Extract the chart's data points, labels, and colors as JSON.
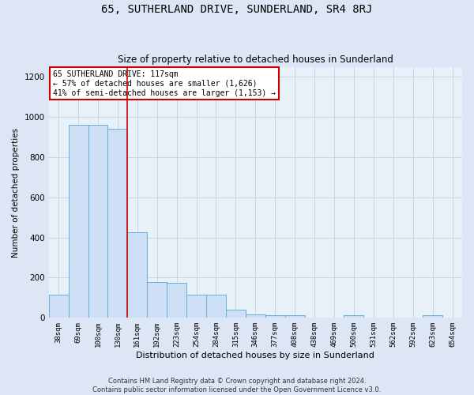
{
  "title": "65, SUTHERLAND DRIVE, SUNDERLAND, SR4 8RJ",
  "subtitle": "Size of property relative to detached houses in Sunderland",
  "xlabel": "Distribution of detached houses by size in Sunderland",
  "ylabel": "Number of detached properties",
  "bin_labels": [
    "38sqm",
    "69sqm",
    "100sqm",
    "130sqm",
    "161sqm",
    "192sqm",
    "223sqm",
    "254sqm",
    "284sqm",
    "315sqm",
    "346sqm",
    "377sqm",
    "408sqm",
    "438sqm",
    "469sqm",
    "500sqm",
    "531sqm",
    "562sqm",
    "592sqm",
    "623sqm",
    "654sqm"
  ],
  "bar_values": [
    115,
    960,
    960,
    940,
    425,
    180,
    175,
    115,
    115,
    40,
    18,
    12,
    12,
    0,
    0,
    12,
    0,
    0,
    0,
    12,
    0
  ],
  "bar_color": "#cddff5",
  "bar_edge_color": "#6baed6",
  "vline_x_index": 3.5,
  "vline_color": "#cc0000",
  "annotation_title": "65 SUTHERLAND DRIVE: 117sqm",
  "annotation_line1": "← 57% of detached houses are smaller (1,626)",
  "annotation_line2": "41% of semi-detached houses are larger (1,153) →",
  "annotation_box_color": "#ffffff",
  "annotation_box_edge": "#cc0000",
  "footer_line1": "Contains HM Land Registry data © Crown copyright and database right 2024.",
  "footer_line2": "Contains public sector information licensed under the Open Government Licence v3.0.",
  "ylim": [
    0,
    1250
  ],
  "yticks": [
    0,
    200,
    400,
    600,
    800,
    1000,
    1200
  ],
  "grid_color": "#c8d4e8",
  "bg_color": "#dce6f5",
  "plot_bg_color": "#e8f0f8"
}
